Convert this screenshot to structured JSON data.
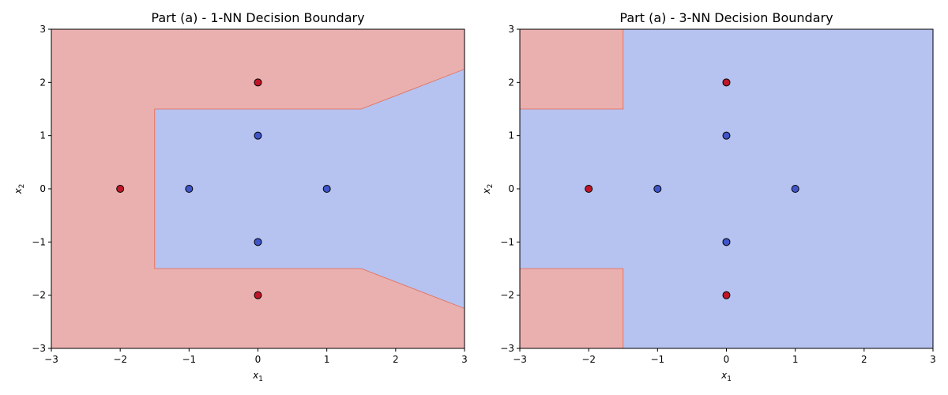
{
  "colors": {
    "class_red_region": "#eab0af",
    "class_blue_region": "#b6c2ef",
    "class_red_point": "#c01528",
    "class_blue_point": "#4055c8",
    "point_edge": "#000000",
    "boundary": "#e56a52"
  },
  "chart_data": [
    {
      "type": "scatter",
      "title": "Part (a) - 1-NN Decision Boundary",
      "xlabel_var": "x",
      "xlabel_sub": "1",
      "ylabel_var": "x",
      "ylabel_sub": "2",
      "xlim": [
        -3,
        3
      ],
      "ylim": [
        -3,
        3
      ],
      "xticks": [
        "−3",
        "−2",
        "−1",
        "0",
        "1",
        "2",
        "3"
      ],
      "xtick_values": [
        -3,
        -2,
        -1,
        0,
        1,
        2,
        3
      ],
      "yticks": [
        "−3",
        "−2",
        "−1",
        "0",
        "1",
        "2",
        "3"
      ],
      "ytick_values": [
        -3,
        -2,
        -1,
        0,
        1,
        2,
        3
      ],
      "grid": false,
      "background_class": "red",
      "regions": [
        {
          "class": "blue",
          "polygon": [
            [
              -1.5,
              1.5
            ],
            [
              1.5,
              1.5
            ],
            [
              3,
              2.25
            ],
            [
              3,
              -2.25
            ],
            [
              1.5,
              -1.5
            ],
            [
              -1.5,
              -1.5
            ]
          ]
        }
      ],
      "points": [
        {
          "x": -2,
          "y": 0,
          "class": "red"
        },
        {
          "x": 0,
          "y": 2,
          "class": "red"
        },
        {
          "x": 0,
          "y": -2,
          "class": "red"
        },
        {
          "x": -1,
          "y": 0,
          "class": "blue"
        },
        {
          "x": 1,
          "y": 0,
          "class": "blue"
        },
        {
          "x": 0,
          "y": 1,
          "class": "blue"
        },
        {
          "x": 0,
          "y": -1,
          "class": "blue"
        }
      ]
    },
    {
      "type": "scatter",
      "title": "Part (a) - 3-NN Decision Boundary",
      "xlabel_var": "x",
      "xlabel_sub": "1",
      "ylabel_var": "x",
      "ylabel_sub": "2",
      "xlim": [
        -3,
        3
      ],
      "ylim": [
        -3,
        3
      ],
      "xticks": [
        "−3",
        "−2",
        "−1",
        "0",
        "1",
        "2",
        "3"
      ],
      "xtick_values": [
        -3,
        -2,
        -1,
        0,
        1,
        2,
        3
      ],
      "yticks": [
        "−3",
        "−2",
        "−1",
        "0",
        "1",
        "2",
        "3"
      ],
      "ytick_values": [
        -3,
        -2,
        -1,
        0,
        1,
        2,
        3
      ],
      "grid": false,
      "background_class": "blue",
      "regions": [
        {
          "class": "red",
          "polygon": [
            [
              -3,
              3
            ],
            [
              -1.5,
              3
            ],
            [
              -1.5,
              1.5
            ],
            [
              -3,
              1.5
            ]
          ]
        },
        {
          "class": "red",
          "polygon": [
            [
              -3,
              -1.5
            ],
            [
              -1.5,
              -1.5
            ],
            [
              -1.5,
              -3
            ],
            [
              -3,
              -3
            ]
          ]
        }
      ],
      "points": [
        {
          "x": -2,
          "y": 0,
          "class": "red"
        },
        {
          "x": 0,
          "y": 2,
          "class": "red"
        },
        {
          "x": 0,
          "y": -2,
          "class": "red"
        },
        {
          "x": -1,
          "y": 0,
          "class": "blue"
        },
        {
          "x": 1,
          "y": 0,
          "class": "blue"
        },
        {
          "x": 0,
          "y": 1,
          "class": "blue"
        },
        {
          "x": 0,
          "y": -1,
          "class": "blue"
        }
      ]
    }
  ]
}
